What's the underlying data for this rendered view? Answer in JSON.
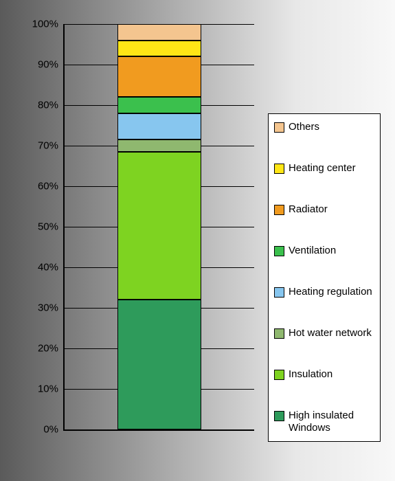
{
  "chart": {
    "type": "stacked-bar-100",
    "ylim": [
      0,
      100
    ],
    "ytick_step": 10,
    "ytick_format_suffix": "%",
    "plot_border_color": "#000000",
    "grid_color": "#000000",
    "bar_border_color": "#000000",
    "axis_fontsize": 15,
    "legend_fontsize": 15,
    "legend_bg": "#ffffff",
    "legend_border": "#000000",
    "segments": [
      {
        "key": "high_insulated_windows",
        "label": "High insulated Windows",
        "value": 32,
        "color": "#2e9b5b"
      },
      {
        "key": "insulation",
        "label": "Insulation",
        "value": 36.5,
        "color": "#7ed321"
      },
      {
        "key": "hot_water_network",
        "label": "Hot water network",
        "value": 3,
        "color": "#8fb86f"
      },
      {
        "key": "heating_regulation",
        "label": "Heating regulation",
        "value": 6.5,
        "color": "#87c6ef"
      },
      {
        "key": "ventilation",
        "label": "Ventilation",
        "value": 4,
        "color": "#3bc04d"
      },
      {
        "key": "radiator",
        "label": "Radiator",
        "value": 10,
        "color": "#f19b1f"
      },
      {
        "key": "heating_center",
        "label": "Heating center",
        "value": 4,
        "color": "#ffe616"
      },
      {
        "key": "others",
        "label": "Others",
        "value": 4,
        "color": "#f4c58f"
      }
    ],
    "legend_order": [
      "others",
      "heating_center",
      "radiator",
      "ventilation",
      "heating_regulation",
      "hot_water_network",
      "insulation",
      "high_insulated_windows"
    ]
  }
}
